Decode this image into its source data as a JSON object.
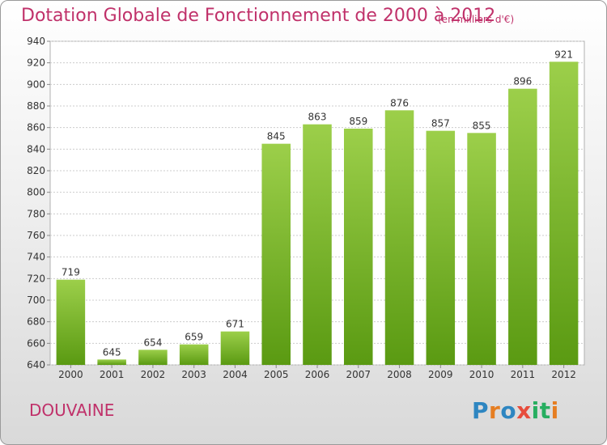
{
  "header": {
    "title": "Dotation Globale de Fonctionnement de 2000 à 2012",
    "unit": "(en milliers d'€)"
  },
  "footer": {
    "commune": "DOUVAINE",
    "logo": {
      "letters": [
        "P",
        "r",
        "o",
        "x",
        "i",
        "t",
        "i"
      ],
      "colors": [
        "#2e86c1",
        "#e67e22",
        "#2e86c1",
        "#e74c3c",
        "#27ae60",
        "#27ae60",
        "#e67e22"
      ]
    }
  },
  "chart_data": {
    "type": "bar",
    "title": "Dotation Globale de Fonctionnement de 2000 à 2012",
    "xlabel": "",
    "ylabel": "",
    "categories": [
      "2000",
      "2001",
      "2002",
      "2003",
      "2004",
      "2005",
      "2006",
      "2007",
      "2008",
      "2009",
      "2010",
      "2011",
      "2012"
    ],
    "values": [
      719,
      645,
      654,
      659,
      671,
      845,
      863,
      859,
      876,
      857,
      855,
      896,
      921
    ],
    "ylim": [
      640,
      940
    ],
    "yticks": [
      640,
      660,
      680,
      700,
      720,
      740,
      760,
      780,
      800,
      820,
      840,
      860,
      880,
      900,
      920,
      940
    ],
    "grid": true,
    "bar_color_top": "#9ccf4a",
    "bar_color_bottom": "#5a9a12"
  }
}
